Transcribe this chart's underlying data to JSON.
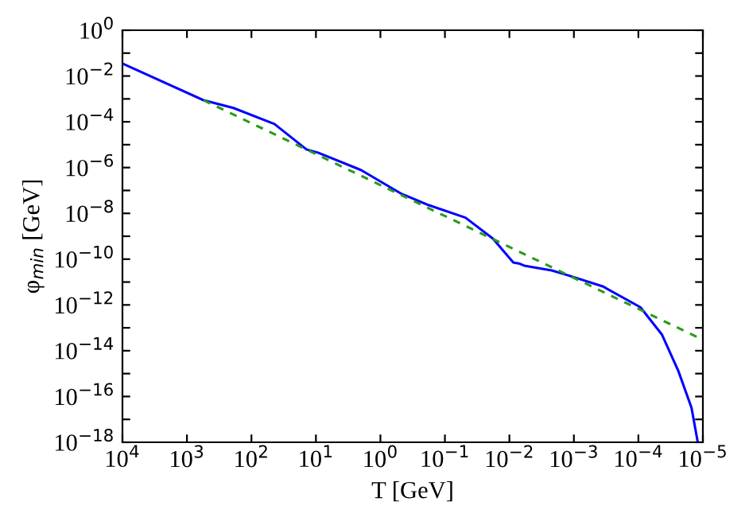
{
  "chart_data": {
    "type": "line",
    "xlabel": "T [GeV]",
    "ylabel": "φ$_{min}$ [GeV]",
    "log": "xy",
    "grid": false,
    "legend": false,
    "marker": "none",
    "xlim": [
      10000,
      1e-05
    ],
    "ylim": [
      1e-18,
      1
    ],
    "xticks": [
      {
        "value": 10000,
        "label": "10$^{4}$"
      },
      {
        "value": 1000,
        "label": "10$^{3}$"
      },
      {
        "value": 100,
        "label": "10$^{2}$"
      },
      {
        "value": 10,
        "label": "10$^{1}$"
      },
      {
        "value": 1,
        "label": "10$^{0}$"
      },
      {
        "value": 0.1,
        "label": "10$^{−1}$"
      },
      {
        "value": 0.01,
        "label": "10$^{−2}$"
      },
      {
        "value": 0.001,
        "label": "10$^{−3}$"
      },
      {
        "value": 0.0001,
        "label": "10$^{−4}$"
      },
      {
        "value": 1e-05,
        "label": "10$^{−5}$"
      }
    ],
    "yticks": [
      {
        "value": 1,
        "label": "10$^{0}$"
      },
      {
        "value": 0.1,
        "label": null
      },
      {
        "value": 0.01,
        "label": "10$^{−2}$"
      },
      {
        "value": 0.001,
        "label": null
      },
      {
        "value": 0.0001,
        "label": "10$^{−4}$"
      },
      {
        "value": 1e-05,
        "label": null
      },
      {
        "value": 1e-06,
        "label": "10$^{−6}$"
      },
      {
        "value": 1e-07,
        "label": null
      },
      {
        "value": 1e-08,
        "label": "10$^{−8}$"
      },
      {
        "value": 1e-09,
        "label": null
      },
      {
        "value": 1e-10,
        "label": "10$^{−10}$"
      },
      {
        "value": 1e-11,
        "label": null
      },
      {
        "value": 1e-12,
        "label": "10$^{−12}$"
      },
      {
        "value": 1e-13,
        "label": null
      },
      {
        "value": 1e-14,
        "label": "10$^{−14}$"
      },
      {
        "value": 1e-15,
        "label": null
      },
      {
        "value": 1e-16,
        "label": "10$^{−16}$"
      },
      {
        "value": 1e-17,
        "label": null
      },
      {
        "value": 1e-18,
        "label": "10$^{−18}$"
      }
    ],
    "series": [
      {
        "color": "#0000ff",
        "line_style": "solid",
        "x": [
          10000,
          550,
          190,
          44,
          14,
          9.3,
          2.0,
          0.47,
          0.18,
          0.048,
          0.018,
          0.0087,
          0.0069,
          0.0059,
          0.0022,
          0.00126,
          0.00035,
          9.3e-05,
          4.3e-05,
          2.4e-05,
          1.5e-05,
          1.2e-05
        ],
        "values": [
          0.035,
          0.00087,
          0.0004,
          8e-05,
          6.2e-06,
          4.5e-06,
          7.8e-07,
          7.1e-08,
          2.3e-08,
          6.5e-09,
          7.9e-10,
          7.2e-11,
          6.3e-11,
          5.2e-11,
          3.2e-11,
          2e-11,
          6.3e-12,
          7.9e-13,
          5e-14,
          1.3e-15,
          3.2e-17,
          1e-18
        ]
      },
      {
        "color": "#2a9a1a",
        "line_style": "dashed",
        "x": [
          550,
          1e-05
        ],
        "values": [
          0.00087,
          3e-14
        ]
      }
    ]
  }
}
